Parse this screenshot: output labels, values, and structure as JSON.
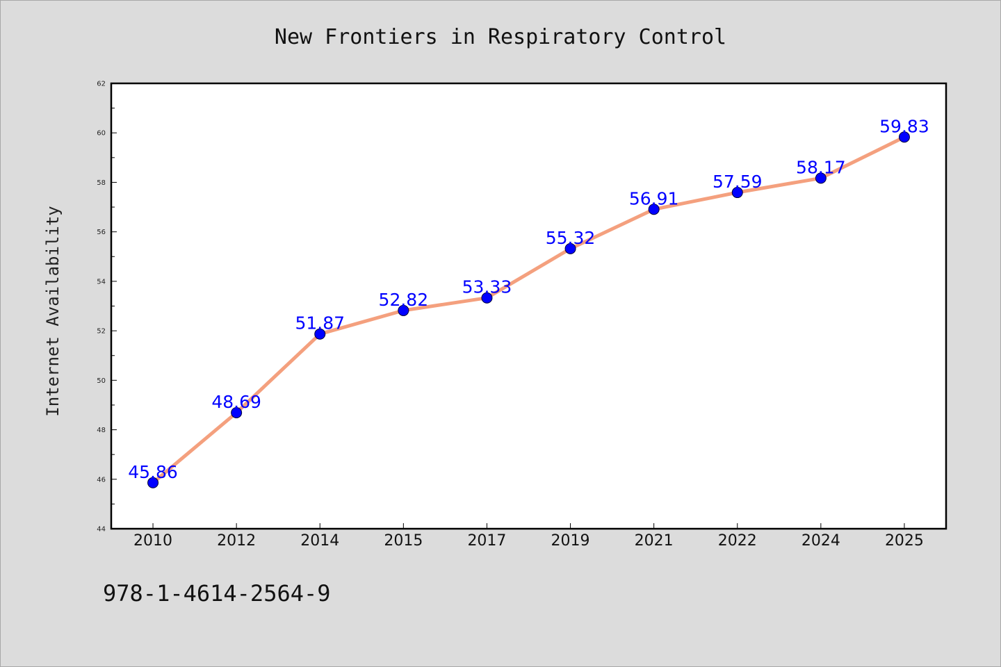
{
  "chart_data": {
    "type": "line",
    "title": "New Frontiers in Respiratory Control",
    "xlabel": "",
    "ylabel": "Internet Availability",
    "categories": [
      "2010",
      "2012",
      "2014",
      "2015",
      "2017",
      "2019",
      "2021",
      "2022",
      "2024",
      "2025"
    ],
    "series": [
      {
        "values": [
          45.86,
          48.69,
          51.87,
          52.82,
          53.33,
          55.32,
          56.91,
          57.59,
          58.17,
          59.83
        ],
        "data_labels": [
          "45.86",
          "48.69",
          "51.87",
          "52.82",
          "53.33",
          "55.32",
          "56.91",
          "57.59",
          "58.17",
          "59.83"
        ],
        "line_color": "#f4a07e",
        "marker_color": "#0000ff"
      }
    ],
    "ylim": [
      44,
      62
    ],
    "yticks": [
      "44",
      "46",
      "48",
      "50",
      "52",
      "54",
      "56",
      "58",
      "60",
      "62"
    ],
    "grid": false,
    "legend": "none",
    "annotation": "978-1-4614-2564-9"
  },
  "colors": {
    "background": "#dcdcdc",
    "plot_area": "#ffffff",
    "line": "#f4a07e",
    "marker": "#0000ff",
    "label": "#0000ff"
  }
}
